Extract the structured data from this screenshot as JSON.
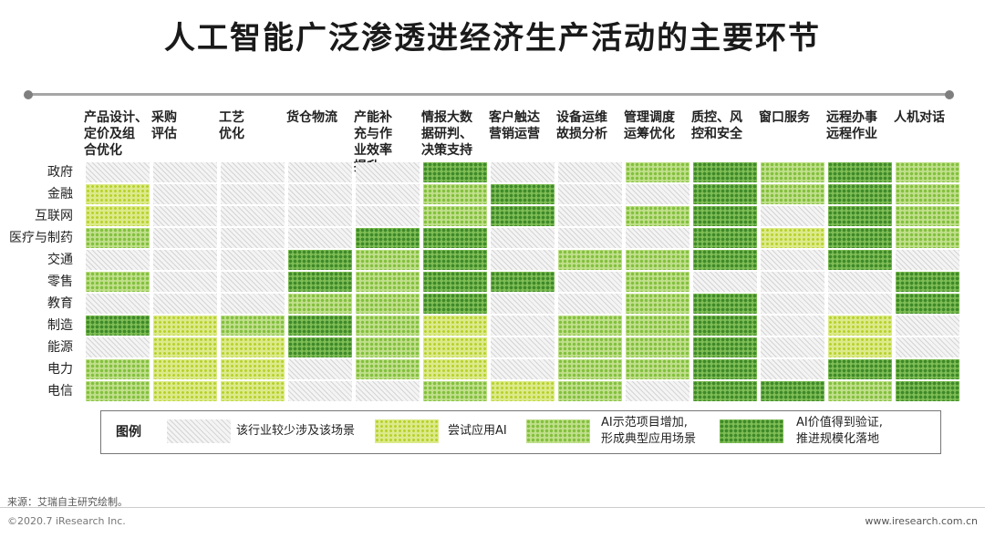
{
  "title": "人工智能广泛渗透进经济生产活动的主要环节",
  "columns": [
    [
      "产品设计、",
      "定价及组",
      "合优化"
    ],
    [
      "采购",
      "评估"
    ],
    [
      "工艺",
      "优化"
    ],
    [
      "货仓物流"
    ],
    [
      "产能补",
      "充与作",
      "业效率",
      "提升"
    ],
    [
      "情报大数",
      "据研判、",
      "决策支持"
    ],
    [
      "客户触达",
      "营销运营"
    ],
    [
      "设备运维",
      "故损分析"
    ],
    [
      "管理调度",
      "运筹优化"
    ],
    [
      "质控、风",
      "控和安全"
    ],
    [
      "窗口服务"
    ],
    [
      "远程办事",
      "远程作业"
    ],
    [
      "人机对话"
    ]
  ],
  "rows": [
    "政府",
    "金融",
    "互联网",
    "医疗与制药",
    "交通",
    "零售",
    "教育",
    "制造",
    "能源",
    "电力",
    "电信"
  ],
  "matrix": [
    [
      0,
      0,
      0,
      0,
      0,
      3,
      0,
      0,
      2,
      3,
      2,
      3,
      2
    ],
    [
      1,
      0,
      0,
      0,
      0,
      2,
      3,
      0,
      0,
      3,
      2,
      3,
      2
    ],
    [
      1,
      0,
      0,
      0,
      0,
      2,
      3,
      0,
      2,
      3,
      0,
      3,
      2
    ],
    [
      2,
      0,
      0,
      0,
      3,
      3,
      0,
      0,
      0,
      3,
      1,
      3,
      2
    ],
    [
      0,
      0,
      0,
      3,
      2,
      3,
      0,
      2,
      2,
      3,
      0,
      3,
      0
    ],
    [
      2,
      0,
      0,
      3,
      2,
      3,
      3,
      0,
      2,
      0,
      0,
      0,
      3
    ],
    [
      0,
      0,
      0,
      2,
      2,
      3,
      0,
      0,
      2,
      3,
      0,
      0,
      3
    ],
    [
      3,
      1,
      2,
      3,
      2,
      1,
      0,
      2,
      2,
      3,
      0,
      1,
      0
    ],
    [
      0,
      1,
      1,
      3,
      2,
      1,
      0,
      2,
      2,
      3,
      0,
      1,
      0
    ],
    [
      2,
      1,
      1,
      0,
      2,
      1,
      0,
      2,
      2,
      3,
      0,
      3,
      3
    ],
    [
      2,
      1,
      1,
      0,
      0,
      2,
      1,
      2,
      0,
      3,
      3,
      2,
      3
    ]
  ],
  "legend": {
    "title": "图例",
    "items": [
      {
        "level": 0,
        "text": [
          "该行业较少涉及该场景"
        ]
      },
      {
        "level": 1,
        "text": [
          "尝试应用AI"
        ]
      },
      {
        "level": 2,
        "text": [
          "AI示范项目增加,",
          "形成典型应用场景"
        ]
      },
      {
        "level": 3,
        "text": [
          "AI价值得到验证,",
          "推进规模化落地"
        ]
      }
    ]
  },
  "footer": {
    "source": "来源：艾瑞自主研究绘制。",
    "copyright": "©2020.7 iResearch Inc.",
    "url": "www.iresearch.com.cn"
  },
  "colors": {
    "level_0": "#f4f4f4",
    "level_1": "#dcea8a",
    "level_2": "#c0df8b",
    "level_3": "#7fbd55"
  }
}
